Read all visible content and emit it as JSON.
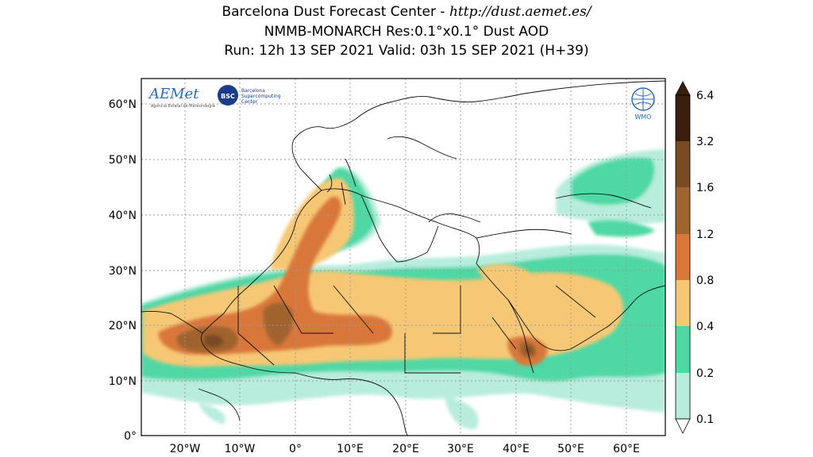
{
  "header": {
    "line1_prefix": "Barcelona Dust Forecast Center - ",
    "line1_url": "http://dust.aemet.es/",
    "line2": "NMMB-MONARCH   Res:0.1°x0.1°   Dust AOD",
    "line3": "Run: 12h 13 SEP 2021   Valid: 03h 15 SEP 2021 (H+39)"
  },
  "map": {
    "lat_ticks": [
      "60°N",
      "50°N",
      "40°N",
      "30°N",
      "20°N",
      "10°N",
      "0°"
    ],
    "lon_ticks": [
      "20°W",
      "10°W",
      "0°",
      "10°E",
      "20°E",
      "30°E",
      "40°E",
      "50°E",
      "60°E"
    ],
    "logos": {
      "aemet_text": "AEMet",
      "aemet_sub": "Agencia Estatal de Meteorología",
      "bsc_badge": "BSC",
      "bsc_text1": "Barcelona",
      "bsc_text2": "Supercomputing",
      "bsc_text3": "Center",
      "wmo_text": "WMO"
    }
  },
  "colorbar": {
    "labels": [
      "6.4",
      "3.2",
      "1.6",
      "1.2",
      "0.8",
      "0.4",
      "0.2",
      "0.1"
    ],
    "colors": [
      "#3b1f0e",
      "#7a4a22",
      "#a0642e",
      "#d9773a",
      "#f6c874",
      "#4fd7a4",
      "#b8ecdc"
    ]
  },
  "colors": {
    "very_light": "#b8ecdc",
    "light": "#4fd7a4",
    "yellow": "#f6c874",
    "orange": "#d9773a",
    "brown": "#a0642e",
    "darkbrown": "#7a4a22"
  }
}
